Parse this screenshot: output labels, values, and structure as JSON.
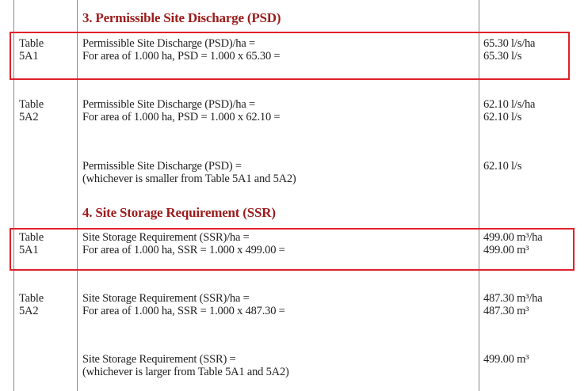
{
  "sections": [
    {
      "heading": "3. Permissible Site Discharge (PSD)",
      "rows": [
        {
          "ref": [
            "Table",
            "5A1"
          ],
          "desc": [
            "Permissible Site Discharge (PSD)/ha =",
            "For area of 1.000 ha, PSD = 1.000 x 65.30 ="
          ],
          "value": [
            "65.30 l/s/ha",
            "65.30 l/s"
          ],
          "highlighted": true
        },
        {
          "ref": [
            "Table",
            "5A2"
          ],
          "desc": [
            "Permissible Site Discharge (PSD)/ha =",
            "For area of 1.000 ha, PSD = 1.000 x 62.10 ="
          ],
          "value": [
            "62.10 l/s/ha",
            "62.10 l/s"
          ],
          "highlighted": false
        },
        {
          "ref": [
            "",
            ""
          ],
          "desc": [
            "Permissible Site Discharge (PSD) =",
            "(whichever is smaller from Table 5A1 and 5A2)"
          ],
          "value": [
            "62.10 l/s",
            ""
          ],
          "highlighted": false
        }
      ]
    },
    {
      "heading": "4. Site Storage Requirement (SSR)",
      "rows": [
        {
          "ref": [
            "Table",
            "5A1"
          ],
          "desc": [
            "Site Storage Requirement (SSR)/ha =",
            "For area of 1.000 ha, SSR = 1.000 x 499.00 ="
          ],
          "value": [
            "499.00 m³/ha",
            "499.00 m³"
          ],
          "highlighted": true
        },
        {
          "ref": [
            "Table",
            "5A2"
          ],
          "desc": [
            "Site Storage Requirement (SSR)/ha =",
            "For area of 1.000 ha, SSR = 1.000 x 487.30 ="
          ],
          "value": [
            "487.30 m³/ha",
            "487.30 m³"
          ],
          "highlighted": false
        },
        {
          "ref": [
            "",
            ""
          ],
          "desc": [
            "Site Storage Requirement (SSR) =",
            "(whichever is larger from Table 5A1 and 5A2)"
          ],
          "value": [
            "499.00 m³",
            ""
          ],
          "highlighted": false
        }
      ]
    }
  ],
  "colors": {
    "heading": "#9b1b1b",
    "highlight": "#e0202a",
    "rule": "#8a8a8a"
  }
}
